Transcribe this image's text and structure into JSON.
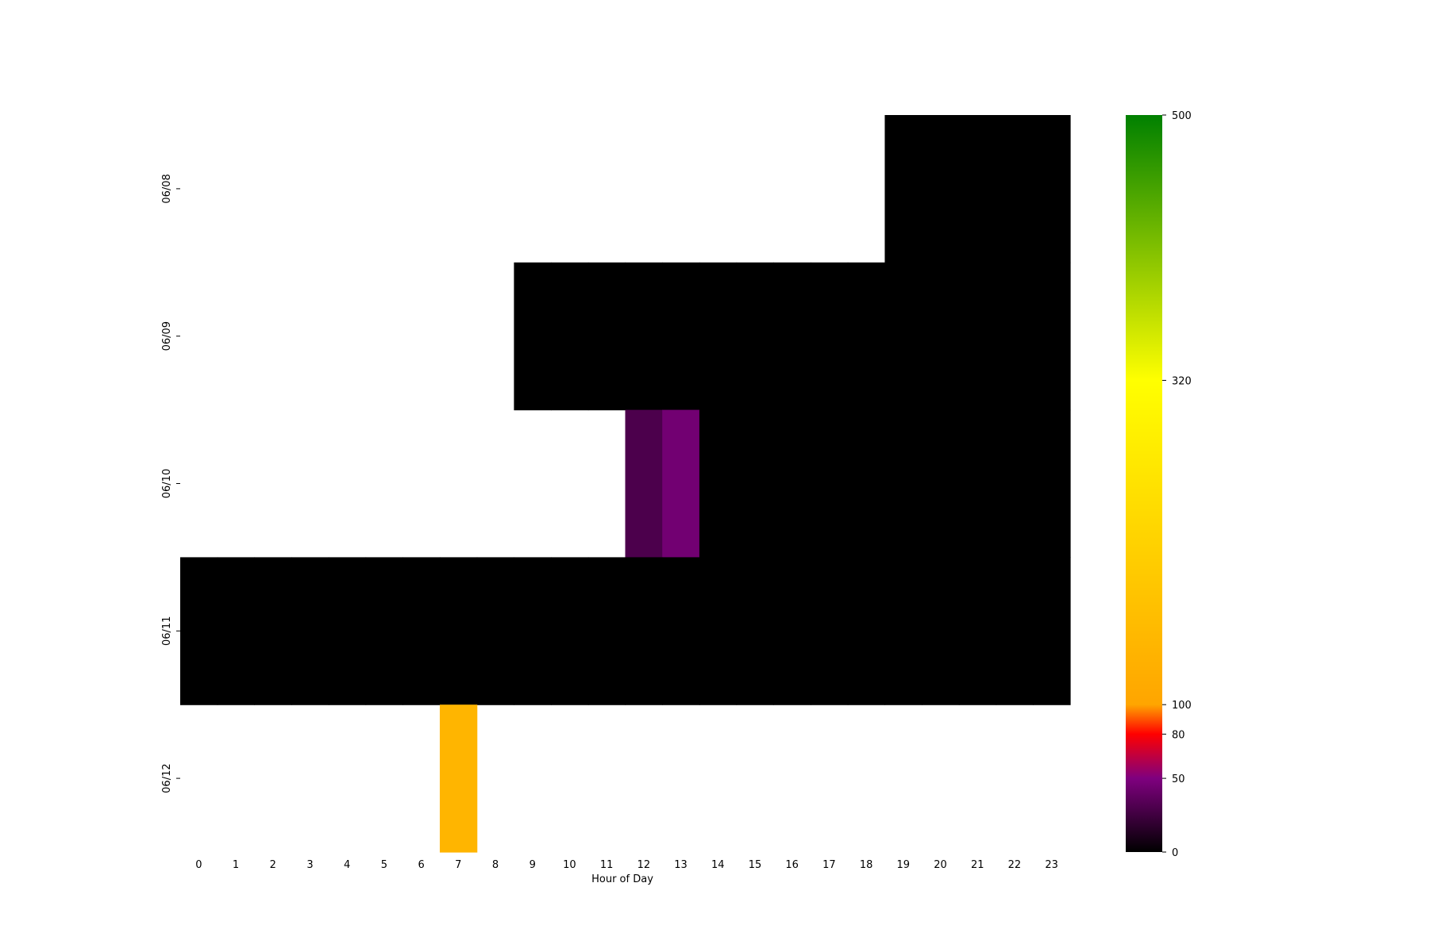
{
  "chart_data": {
    "type": "heatmap",
    "xlabel": "Hour of Day",
    "ylabel": "",
    "x": [
      "0",
      "1",
      "2",
      "3",
      "4",
      "5",
      "6",
      "7",
      "8",
      "9",
      "10",
      "11",
      "12",
      "13",
      "14",
      "15",
      "16",
      "17",
      "18",
      "19",
      "20",
      "21",
      "22",
      "23"
    ],
    "y": [
      "06/08",
      "06/09",
      "06/10",
      "06/11",
      "06/12"
    ],
    "values": [
      [
        null,
        null,
        null,
        null,
        null,
        null,
        null,
        null,
        null,
        null,
        null,
        null,
        null,
        null,
        null,
        null,
        null,
        null,
        null,
        0,
        0,
        0,
        0,
        0
      ],
      [
        null,
        null,
        null,
        null,
        null,
        null,
        null,
        null,
        null,
        0,
        0,
        0,
        0,
        0,
        0,
        0,
        0,
        0,
        0,
        0,
        0,
        0,
        0,
        0
      ],
      [
        null,
        null,
        null,
        null,
        null,
        null,
        null,
        null,
        null,
        null,
        null,
        null,
        30,
        45,
        0,
        0,
        0,
        0,
        0,
        0,
        0,
        0,
        0,
        0
      ],
      [
        0,
        0,
        0,
        0,
        0,
        0,
        0,
        0,
        0,
        0,
        0,
        0,
        0,
        0,
        0,
        0,
        0,
        0,
        0,
        0,
        0,
        0,
        0,
        0
      ],
      [
        null,
        null,
        null,
        null,
        null,
        null,
        null,
        140,
        null,
        null,
        null,
        null,
        null,
        null,
        null,
        null,
        null,
        null,
        null,
        null,
        null,
        null,
        null,
        null
      ]
    ],
    "colorbar": {
      "ticks": [
        "0",
        "50",
        "80",
        "100",
        "320",
        "500"
      ],
      "range": [
        0,
        500
      ],
      "stops": [
        {
          "value": 0,
          "color": "#000000"
        },
        {
          "value": 50,
          "color": "#7f007f"
        },
        {
          "value": 80,
          "color": "#ff0000"
        },
        {
          "value": 100,
          "color": "#ffa500"
        },
        {
          "value": 320,
          "color": "#ffff00"
        },
        {
          "value": 500,
          "color": "#008000"
        }
      ]
    },
    "grid": false,
    "legend": "colorbar-right"
  }
}
